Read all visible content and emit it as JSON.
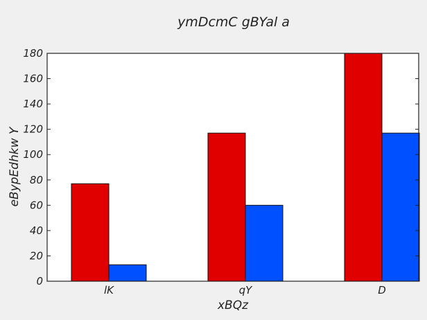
{
  "chart_data": {
    "type": "bar",
    "title": "ymDcmC gBYal a",
    "xlabel": "xBQz",
    "ylabel": "eBypEdhkw  Y",
    "categories": [
      "lK",
      "qY",
      "D"
    ],
    "series": [
      {
        "color": "#e00000",
        "values": [
          77,
          117,
          180
        ]
      },
      {
        "color": "#0050ff",
        "values": [
          13,
          60,
          117
        ]
      }
    ],
    "ylim": [
      0,
      180
    ],
    "yticks": [
      0,
      20,
      40,
      60,
      80,
      100,
      120,
      140,
      160,
      180
    ],
    "grid": false,
    "legend": "none"
  },
  "colors": {
    "background": "#f0f0f0",
    "plot_background": "#ffffff",
    "axis": "#222222"
  }
}
